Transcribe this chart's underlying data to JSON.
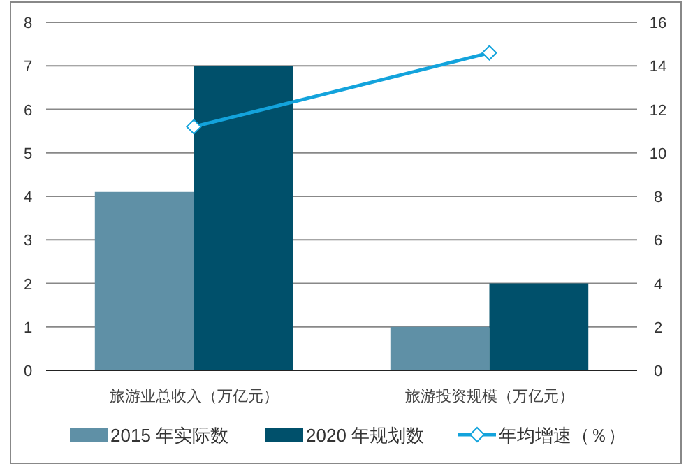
{
  "chart_data": {
    "type": "bar",
    "categories": [
      "旅游业总收入（万亿元）",
      "旅游投资规模（万亿元）"
    ],
    "series": [
      {
        "name": "2015 年实际数",
        "color": "#5f90a6",
        "values": [
          4.1,
          1.0
        ]
      },
      {
        "name": "2020 年规划数",
        "color": "#00506b",
        "values": [
          7,
          2
        ]
      },
      {
        "name": "年均增速（％）",
        "type": "line",
        "axis": "y2",
        "color": "#13a3dc",
        "marker": "diamond",
        "values": [
          11.2,
          14.6
        ]
      }
    ],
    "ylim": [
      0,
      8
    ],
    "yticks": [
      0,
      1,
      2,
      3,
      4,
      5,
      6,
      7,
      8
    ],
    "y2lim": [
      0,
      16
    ],
    "y2ticks": [
      0,
      2,
      4,
      6,
      8,
      10,
      12,
      14,
      16
    ],
    "grid": "y",
    "legend": "bottom"
  }
}
